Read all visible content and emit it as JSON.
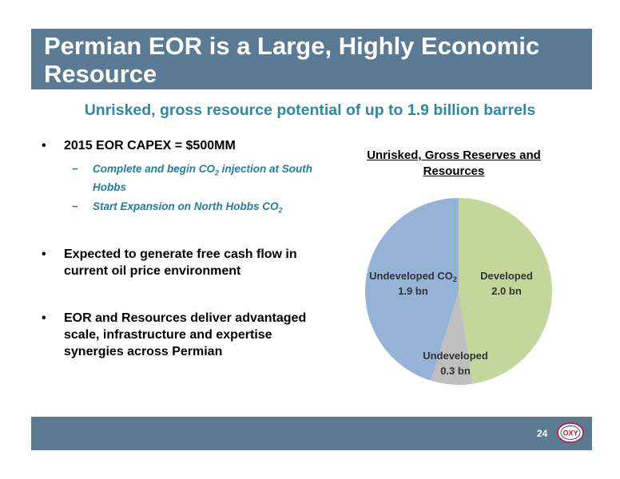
{
  "header": {
    "title": "Permian EOR is a Large, Highly Economic Resource"
  },
  "subtitle": "Unrisked, gross resource potential of up to 1.9 billion barrels",
  "bullets": [
    {
      "text": "2015 EOR CAPEX = $500MM",
      "subitems": [
        {
          "before": "Complete and begin CO",
          "sub": "2",
          "after": " injection at South Hobbs"
        },
        {
          "before": "Start Expansion on North Hobbs CO",
          "sub": "2",
          "after": ""
        }
      ]
    },
    {
      "text": "Expected to generate free cash flow in current oil price environment"
    },
    {
      "text": "EOR and Resources deliver advantaged scale, infrastructure and expertise synergies across Permian"
    }
  ],
  "chart_data": {
    "type": "pie",
    "title": "Unrisked, Gross Reserves and Resources",
    "slices": [
      {
        "label_line1": "Developed",
        "label_sub": "",
        "value_label": "2.0 bn",
        "value": 2.0,
        "color": "#c4d79b"
      },
      {
        "label_line1": "Undeveloped",
        "label_sub": "",
        "value_label": "0.3 bn",
        "value": 0.3,
        "color": "#bfbfbf"
      },
      {
        "label_line1": "Undeveloped CO",
        "label_sub": "2",
        "value_label": "1.9 bn",
        "value": 1.9,
        "color": "#95b3d7"
      }
    ],
    "start": "12 o'clock, clockwise"
  },
  "footer": {
    "page_number": "24",
    "logo_text": "OXY"
  },
  "colors": {
    "bar": "#5b7a93",
    "accent": "#2e88a8"
  }
}
